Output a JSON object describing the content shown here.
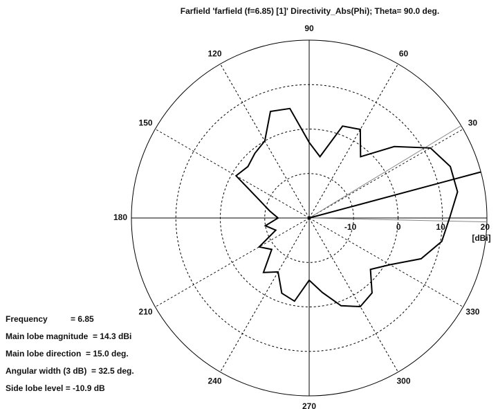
{
  "chart_data": {
    "type": "polar",
    "title": "Farfield 'farfield (f=6.85) [1]' Directivity_Abs(Phi); Theta=  90.0 deg.",
    "x": [
      0,
      10,
      20,
      30,
      40,
      50,
      60,
      70,
      80,
      90,
      100,
      110,
      120,
      130,
      140,
      150,
      160,
      170,
      180,
      190,
      200,
      210,
      220,
      230,
      240,
      250,
      260,
      270,
      280,
      290,
      300,
      310,
      320,
      330,
      340,
      350
    ],
    "values": [
      11.6,
      13.9,
      13.8,
      11.5,
      5,
      -2,
      3,
      2,
      -6,
      -3,
      5,
      5.5,
      0,
      -1,
      -2,
      -1,
      -8,
      -11,
      -13,
      -10,
      -12,
      -7,
      -9,
      -4,
      -6,
      -2,
      -1,
      -6,
      -3,
      1,
      3,
      2,
      -2,
      1,
      6.8,
      10.3
    ],
    "color": "#000000",
    "rlim": [
      -20,
      20
    ],
    "rticks": [
      -10,
      0,
      10,
      20
    ],
    "r_unit": "[dBi]",
    "thetaticks": [
      30,
      60,
      90,
      120,
      150,
      180,
      210,
      240,
      270,
      300,
      330
    ],
    "main_lobe_line": 15,
    "beamwidth_lines": [
      -1.25,
      31.25
    ],
    "annotations": [
      "Frequency          = 6.85",
      "Main lobe magnitude  = 14.3 dBi",
      "Main lobe direction  = 15.0 deg.",
      "Angular width (3 dB)  = 32.5 deg.",
      "Side lobe level = -10.9 dB"
    ]
  }
}
